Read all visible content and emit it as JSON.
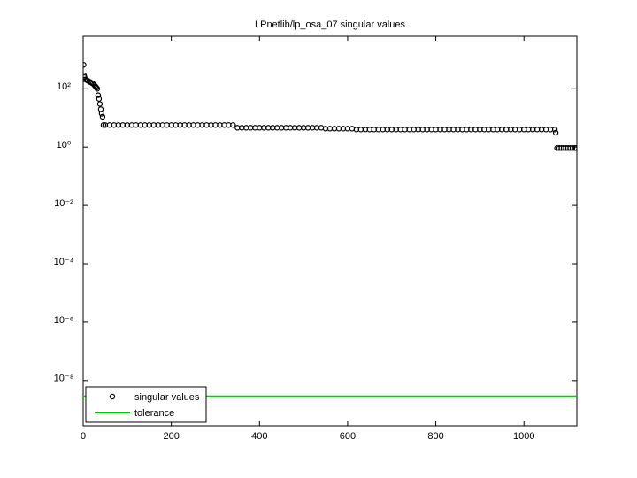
{
  "chart_data": {
    "type": "scatter",
    "title": "LPnetlib/lp_osa_07 singular values",
    "log_y": true,
    "xlim": [
      0,
      1120
    ],
    "xticks": [
      0,
      200,
      400,
      600,
      800,
      1000
    ],
    "ylim": [
      2.8e-10,
      6300
    ],
    "yticks": [
      {
        "value": 1e-08,
        "label": "10⁻⁸"
      },
      {
        "value": 1e-06,
        "label": "10⁻⁶"
      },
      {
        "value": 0.0001,
        "label": "10⁻⁴"
      },
      {
        "value": 0.01,
        "label": "10⁻²"
      },
      {
        "value": 1,
        "label": "10⁰"
      },
      {
        "value": 100,
        "label": "10²"
      }
    ],
    "legend": "lower left",
    "series": [
      {
        "name": "singular values",
        "color": "#000000",
        "marker": "circle",
        "x": [
          1,
          2,
          3,
          5,
          8,
          10,
          13,
          16,
          19,
          22,
          25,
          28,
          30,
          32,
          34,
          36,
          38,
          40,
          42,
          44,
          46,
          50,
          60,
          70,
          80,
          90,
          100,
          110,
          120,
          130,
          140,
          150,
          160,
          170,
          180,
          190,
          200,
          210,
          220,
          230,
          240,
          250,
          260,
          270,
          280,
          290,
          300,
          310,
          320,
          330,
          340,
          350,
          360,
          370,
          380,
          390,
          400,
          410,
          420,
          430,
          440,
          450,
          460,
          470,
          480,
          490,
          500,
          510,
          520,
          530,
          540,
          550,
          560,
          570,
          580,
          590,
          600,
          610,
          620,
          630,
          640,
          650,
          660,
          670,
          680,
          690,
          700,
          710,
          720,
          730,
          740,
          750,
          760,
          770,
          780,
          790,
          800,
          810,
          820,
          830,
          840,
          850,
          860,
          870,
          880,
          890,
          900,
          910,
          920,
          930,
          940,
          950,
          960,
          970,
          980,
          990,
          1000,
          1010,
          1020,
          1030,
          1040,
          1050,
          1060,
          1070,
          1072,
          1075,
          1080,
          1085,
          1090,
          1095,
          1100,
          1105,
          1110,
          1115,
          1118
        ],
        "values": [
          660,
          285,
          250,
          210,
          200,
          190,
          180,
          170,
          160,
          150,
          135,
          120,
          110,
          100,
          60,
          45,
          30,
          20,
          14,
          11,
          5.7,
          5.7,
          5.7,
          5.7,
          5.7,
          5.7,
          5.7,
          5.7,
          5.7,
          5.7,
          5.7,
          5.7,
          5.7,
          5.7,
          5.7,
          5.7,
          5.7,
          5.7,
          5.7,
          5.7,
          5.7,
          5.7,
          5.7,
          5.7,
          5.7,
          5.7,
          5.7,
          5.7,
          5.7,
          5.7,
          5.7,
          4.6,
          4.6,
          4.6,
          4.6,
          4.6,
          4.6,
          4.6,
          4.6,
          4.6,
          4.6,
          4.6,
          4.6,
          4.6,
          4.6,
          4.6,
          4.6,
          4.6,
          4.6,
          4.6,
          4.6,
          4.3,
          4.3,
          4.3,
          4.3,
          4.3,
          4.3,
          4.3,
          4.0,
          4.0,
          4.0,
          4.0,
          4.0,
          4.0,
          4.0,
          4.0,
          4.0,
          4.0,
          4.0,
          4.0,
          4.0,
          4.0,
          4.0,
          4.0,
          4.0,
          4.0,
          4.0,
          4.0,
          4.0,
          4.0,
          4.0,
          4.0,
          4.0,
          4.0,
          4.0,
          4.0,
          4.0,
          4.0,
          4.0,
          4.0,
          4.0,
          4.0,
          4.0,
          4.0,
          4.0,
          4.0,
          4.0,
          4.0,
          4.0,
          4.0,
          4.0,
          4.0,
          4.0,
          4.0,
          3.1,
          0.93,
          0.93,
          0.93,
          0.93,
          0.93,
          0.93,
          0.93,
          0.93,
          0.93,
          0.93
        ]
      },
      {
        "name": "tolerance",
        "color": "#00cc00",
        "marker": "line",
        "x": [
          0,
          1120
        ],
        "values": [
          2.85e-09,
          2.85e-09
        ]
      }
    ]
  }
}
